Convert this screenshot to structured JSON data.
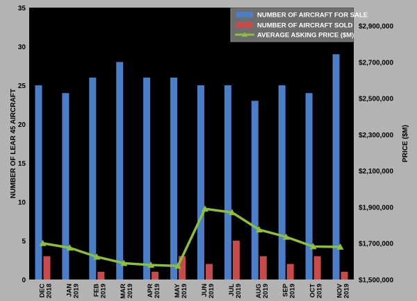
{
  "chart_data": {
    "type": "bar",
    "categories": [
      [
        "DEC",
        "2018"
      ],
      [
        "JAN",
        "2019"
      ],
      [
        "FEB",
        "2019"
      ],
      [
        "MAR",
        "2019"
      ],
      [
        "APR",
        "2019"
      ],
      [
        "MAY",
        "2019"
      ],
      [
        "JUN",
        "2019"
      ],
      [
        "JUL",
        "2019"
      ],
      [
        "AUG",
        "2019"
      ],
      [
        "SEP",
        "2019"
      ],
      [
        "OCT",
        "2019"
      ],
      [
        "NOV",
        "2019"
      ]
    ],
    "series": [
      {
        "name": "NUMBER OF AIRCRAFT FOR SALE",
        "type": "bar",
        "axis": "left",
        "color": "#4a7ec9",
        "values": [
          25,
          24,
          26,
          28,
          26,
          26,
          25,
          25,
          23,
          25,
          24,
          29
        ]
      },
      {
        "name": "NUMBER OF AIRCRAFT SOLD",
        "type": "bar",
        "axis": "left",
        "color": "#c94a4a",
        "values": [
          3,
          0,
          1,
          0,
          1,
          3,
          2,
          5,
          3,
          2,
          3,
          1
        ]
      },
      {
        "name": "AVERAGE ASKING PRICE ($M)",
        "type": "line",
        "axis": "right",
        "color": "#8dbf3f",
        "values": [
          1700000,
          1675000,
          1625000,
          1590000,
          1580000,
          1575000,
          1890000,
          1870000,
          1775000,
          1735000,
          1682000,
          1680000
        ]
      }
    ],
    "ylabel": "NUMBER OF LEAR 45 AIRCRAFT",
    "y2label": "PRICE ($M)",
    "ylim": [
      0,
      35
    ],
    "yticks": [
      "0",
      "5",
      "10",
      "15",
      "20",
      "25",
      "30",
      "35"
    ],
    "y2lim": [
      1500000,
      3000000
    ],
    "y2ticks": [
      "$1,500,000",
      "$1,700,000",
      "$1,900,000",
      "$2,100,000",
      "$2,300,000",
      "$2,500,000",
      "$2,700,000",
      "$2,900,000"
    ],
    "legend": "top-right",
    "grid": false,
    "colors": {
      "background": "#b3b3b3",
      "plot_area": "#000000"
    }
  }
}
